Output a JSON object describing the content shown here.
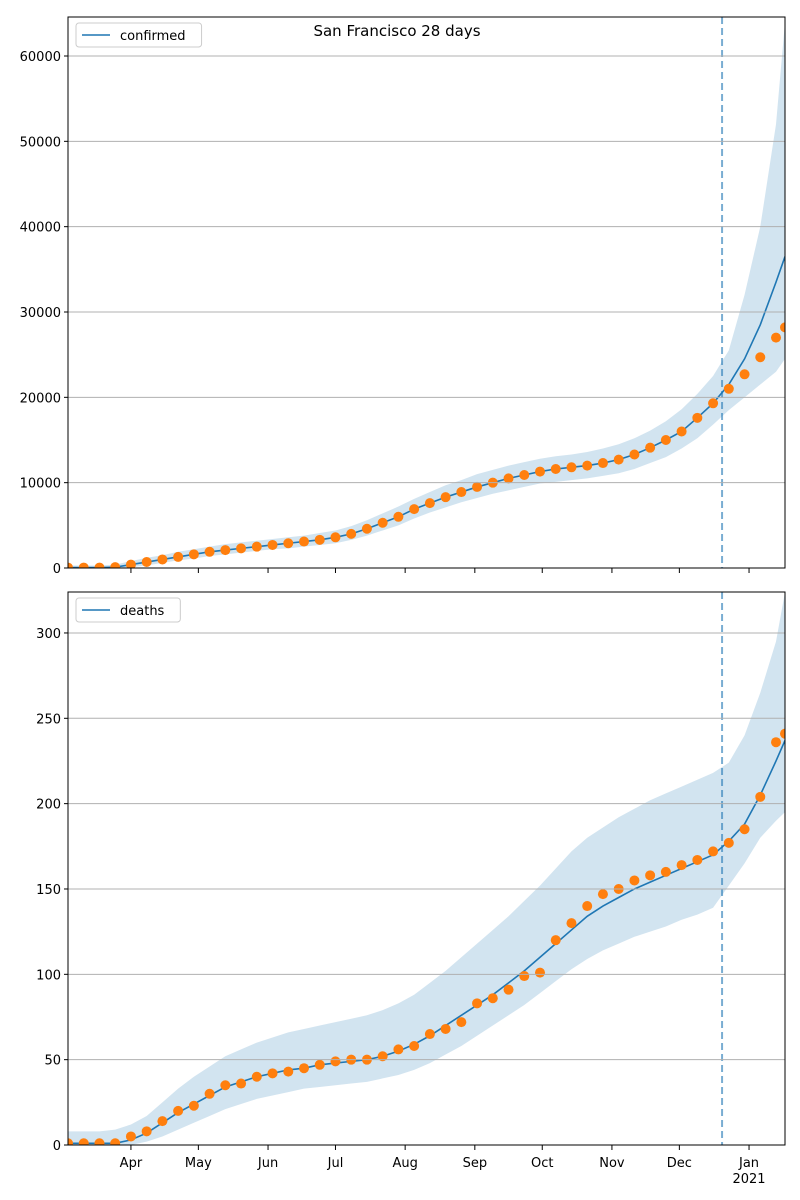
{
  "chart_data": [
    {
      "type": "line",
      "title": "San Francisco 28 days",
      "legend": "upper left",
      "grid": true,
      "x": [
        0,
        7,
        14,
        21,
        28,
        35,
        42,
        49,
        56,
        63,
        70,
        77,
        84,
        91,
        98,
        105,
        112,
        119,
        126,
        133,
        140,
        147,
        154,
        161,
        168,
        175,
        182,
        189,
        196,
        203,
        210,
        217,
        224,
        231,
        238,
        245,
        252,
        259,
        266,
        273,
        280,
        287,
        294,
        301,
        308,
        315,
        319
      ],
      "xlim": [
        0,
        319
      ],
      "xticks": [
        {
          "value": 28,
          "label": "Apr"
        },
        {
          "value": 58,
          "label": "May"
        },
        {
          "value": 89,
          "label": "Jun"
        },
        {
          "value": 119,
          "label": "Jul"
        },
        {
          "value": 150,
          "label": "Aug"
        },
        {
          "value": 181,
          "label": "Sep"
        },
        {
          "value": 211,
          "label": "Oct"
        },
        {
          "value": 242,
          "label": "Nov"
        },
        {
          "value": 272,
          "label": "Dec"
        },
        {
          "value": 303,
          "label": "Jan",
          "sublabel": "2021"
        }
      ],
      "ylim": [
        0,
        64570
      ],
      "yticks": [
        0,
        10000,
        20000,
        30000,
        40000,
        50000,
        60000
      ],
      "vline": 291,
      "band": {
        "color": "#1f77b4",
        "upper": [
          300,
          300,
          300,
          400,
          800,
          1200,
          1500,
          1900,
          2200,
          2500,
          2800,
          3000,
          3200,
          3400,
          3600,
          3800,
          4100,
          4400,
          4900,
          5600,
          6400,
          7200,
          8100,
          8900,
          9700,
          10300,
          11000,
          11500,
          12000,
          12400,
          12800,
          13100,
          13300,
          13600,
          14000,
          14500,
          15200,
          16100,
          17200,
          18600,
          20400,
          22500,
          25500,
          32000,
          40000,
          52000,
          64000
        ],
        "lower": [
          0,
          0,
          0,
          0,
          100,
          300,
          600,
          900,
          1100,
          1400,
          1600,
          1800,
          2000,
          2200,
          2300,
          2500,
          2700,
          2900,
          3300,
          3800,
          4400,
          5000,
          5800,
          6500,
          7100,
          7700,
          8200,
          8700,
          9100,
          9500,
          9900,
          10100,
          10300,
          10500,
          10800,
          11100,
          11600,
          12300,
          13000,
          14000,
          15200,
          16800,
          18500,
          20000,
          21500,
          23000,
          24500
        ]
      },
      "series": [
        {
          "name": "confirmed",
          "color": "#1f77b4",
          "style": "line",
          "values": [
            50,
            50,
            50,
            100,
            400,
            700,
            1000,
            1300,
            1600,
            1900,
            2100,
            2300,
            2500,
            2700,
            2900,
            3100,
            3300,
            3600,
            4000,
            4600,
            5300,
            6000,
            6900,
            7600,
            8300,
            8900,
            9500,
            10000,
            10500,
            10900,
            11300,
            11600,
            11800,
            12000,
            12300,
            12700,
            13300,
            14100,
            15000,
            16000,
            17600,
            19300,
            21500,
            24500,
            28500,
            33500,
            36500
          ]
        },
        {
          "color": "#ff7f0e",
          "style": "markers",
          "values": [
            50,
            50,
            50,
            100,
            400,
            700,
            1000,
            1300,
            1600,
            1900,
            2100,
            2300,
            2500,
            2700,
            2900,
            3100,
            3300,
            3600,
            4000,
            4600,
            5300,
            6000,
            6900,
            7600,
            8300,
            8900,
            9500,
            10000,
            10500,
            10900,
            11300,
            11600,
            11800,
            12000,
            12300,
            12700,
            13300,
            14100,
            15000,
            16000,
            17600,
            19300,
            21000,
            22700,
            24700,
            27000,
            28200
          ]
        }
      ]
    },
    {
      "type": "line",
      "legend": "upper left",
      "grid": true,
      "x": [
        0,
        7,
        14,
        21,
        28,
        35,
        42,
        49,
        56,
        63,
        70,
        77,
        84,
        91,
        98,
        105,
        112,
        119,
        126,
        133,
        140,
        147,
        154,
        161,
        168,
        175,
        182,
        189,
        196,
        203,
        210,
        217,
        224,
        231,
        238,
        245,
        252,
        259,
        266,
        273,
        280,
        287,
        294,
        301,
        308,
        315,
        319
      ],
      "xlim": [
        0,
        319
      ],
      "xticks": [
        {
          "value": 28,
          "label": "Apr"
        },
        {
          "value": 58,
          "label": "May"
        },
        {
          "value": 89,
          "label": "Jun"
        },
        {
          "value": 119,
          "label": "Jul"
        },
        {
          "value": 150,
          "label": "Aug"
        },
        {
          "value": 181,
          "label": "Sep"
        },
        {
          "value": 211,
          "label": "Oct"
        },
        {
          "value": 242,
          "label": "Nov"
        },
        {
          "value": 272,
          "label": "Dec"
        },
        {
          "value": 303,
          "label": "Jan",
          "sublabel": "2021"
        }
      ],
      "ylim": [
        0,
        324
      ],
      "yticks": [
        0,
        50,
        100,
        150,
        200,
        250,
        300
      ],
      "vline": 291,
      "band": {
        "color": "#1f77b4",
        "upper": [
          8,
          8,
          8,
          9,
          12,
          17,
          25,
          33,
          40,
          46,
          52,
          56,
          60,
          63,
          66,
          68,
          70,
          72,
          74,
          76,
          79,
          83,
          88,
          95,
          102,
          110,
          118,
          126,
          134,
          143,
          152,
          162,
          172,
          180,
          186,
          192,
          197,
          202,
          206,
          210,
          214,
          218,
          224,
          240,
          265,
          295,
          324
        ],
        "lower": [
          0,
          0,
          0,
          0,
          0,
          2,
          5,
          9,
          13,
          17,
          21,
          24,
          27,
          29,
          31,
          33,
          34,
          35,
          36,
          37,
          39,
          41,
          44,
          48,
          53,
          58,
          64,
          70,
          76,
          82,
          89,
          96,
          103,
          109,
          114,
          118,
          122,
          125,
          128,
          132,
          135,
          139,
          152,
          165,
          180,
          190,
          195
        ]
      },
      "series": [
        {
          "name": "deaths",
          "color": "#1f77b4",
          "style": "line",
          "values": [
            1,
            1,
            1,
            1,
            3,
            7,
            13,
            19,
            24,
            29,
            34,
            37,
            40,
            42,
            44,
            45,
            47,
            48,
            49,
            50,
            52,
            55,
            59,
            64,
            70,
            76,
            82,
            88,
            95,
            102,
            110,
            118,
            126,
            134,
            140,
            145,
            150,
            154,
            158,
            162,
            166,
            170,
            178,
            188,
            205,
            225,
            237
          ]
        },
        {
          "color": "#ff7f0e",
          "style": "markers",
          "values": [
            1,
            1,
            1,
            1,
            5,
            8,
            14,
            20,
            23,
            30,
            35,
            36,
            40,
            42,
            43,
            45,
            47,
            49,
            50,
            50,
            52,
            56,
            58,
            65,
            68,
            72,
            83,
            86,
            91,
            99,
            101,
            120,
            130,
            140,
            147,
            150,
            155,
            158,
            160,
            164,
            167,
            172,
            177,
            185,
            204,
            236,
            241
          ]
        }
      ]
    }
  ]
}
